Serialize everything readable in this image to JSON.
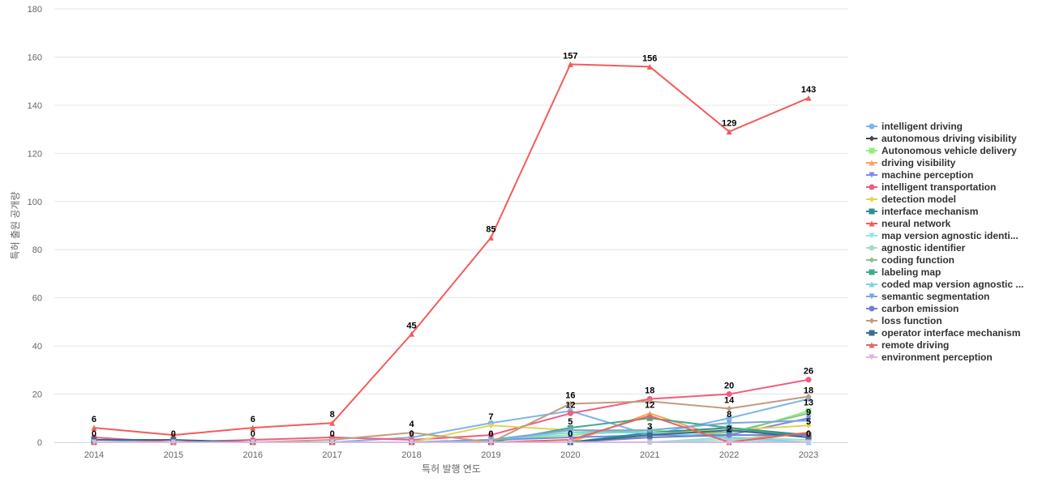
{
  "chart_data": {
    "type": "line",
    "x_title": "특허 발행 연도",
    "y_title": "특허 출원 공개량",
    "categories": [
      "2014",
      "2015",
      "2016",
      "2017",
      "2018",
      "2019",
      "2020",
      "2021",
      "2022",
      "2023"
    ],
    "y_ticks": [
      "0",
      "20",
      "40",
      "60",
      "80",
      "100",
      "120",
      "140",
      "160",
      "180"
    ],
    "ylim": [
      0,
      180
    ],
    "grid": true,
    "legend_position": "right",
    "series": [
      {
        "name": "intelligent driving",
        "color": "#7cb5ec",
        "marker": "circle",
        "values": [
          1,
          0,
          0,
          0,
          2,
          8,
          13,
          3,
          10,
          18
        ]
      },
      {
        "name": "autonomous driving visibility",
        "color": "#434348",
        "marker": "diamond",
        "values": [
          0,
          0,
          0,
          0,
          0,
          0,
          0,
          3,
          5,
          3
        ]
      },
      {
        "name": "Autonomous vehicle delivery",
        "color": "#90ed7d",
        "marker": "square",
        "values": [
          0,
          0,
          0,
          0,
          0,
          1,
          3,
          5,
          3,
          13
        ]
      },
      {
        "name": "driving visibility",
        "color": "#f7a35c",
        "marker": "triangle",
        "values": [
          0,
          0,
          0,
          0,
          0,
          0,
          0,
          12,
          1,
          4
        ]
      },
      {
        "name": "machine perception",
        "color": "#8085e9",
        "marker": "triangle-down",
        "values": [
          0,
          0,
          0,
          0,
          0,
          1,
          2,
          3,
          3,
          10
        ]
      },
      {
        "name": "intelligent transportation",
        "color": "#f15c80",
        "marker": "circle",
        "values": [
          2,
          0,
          1,
          2,
          1,
          3,
          12,
          18,
          20,
          26
        ]
      },
      {
        "name": "detection model",
        "color": "#e4d354",
        "marker": "diamond",
        "values": [
          0,
          0,
          0,
          0,
          0,
          7,
          5,
          4,
          5,
          7
        ]
      },
      {
        "name": "interface mechanism",
        "color": "#2b908f",
        "marker": "square",
        "values": [
          0,
          0,
          0,
          0,
          0,
          0,
          0,
          4,
          6,
          3
        ]
      },
      {
        "name": "neural network",
        "color": "#f45b5b",
        "marker": "triangle",
        "values": [
          6,
          3,
          6,
          8,
          45,
          85,
          157,
          156,
          129,
          143
        ]
      },
      {
        "name": "map version agnostic identi...",
        "color": "#91e8e1",
        "marker": "triangle-down",
        "values": [
          0,
          0,
          0,
          0,
          0,
          0,
          0,
          0,
          1,
          0
        ]
      },
      {
        "name": "agnostic identifier",
        "color": "#a6dcc7",
        "marker": "circle",
        "values": [
          0,
          0,
          0,
          0,
          0,
          0,
          0,
          0,
          2,
          1
        ]
      },
      {
        "name": "coding function",
        "color": "#8bc28b",
        "marker": "diamond",
        "values": [
          0,
          0,
          0,
          0,
          0,
          1,
          5,
          4,
          4,
          12
        ]
      },
      {
        "name": "labeling map",
        "color": "#45a88d",
        "marker": "square",
        "values": [
          0,
          0,
          0,
          0,
          0,
          0,
          6,
          10,
          6,
          2
        ]
      },
      {
        "name": "coded map version agnostic ...",
        "color": "#7dd3e8",
        "marker": "triangle",
        "values": [
          0,
          0,
          0,
          0,
          0,
          1,
          4,
          4,
          2,
          0
        ]
      },
      {
        "name": "semantic segmentation",
        "color": "#79a7d9",
        "marker": "triangle-down",
        "values": [
          0,
          0,
          0,
          0,
          0,
          1,
          5,
          5,
          8,
          9
        ]
      },
      {
        "name": "carbon emission",
        "color": "#6f7fd1",
        "marker": "circle",
        "values": [
          0,
          0,
          0,
          0,
          0,
          0,
          0,
          2,
          3,
          3
        ]
      },
      {
        "name": "loss function",
        "color": "#c49c7e",
        "marker": "diamond",
        "values": [
          0,
          0,
          0,
          1,
          4,
          0,
          16,
          17,
          14,
          19
        ]
      },
      {
        "name": "operator interface mechanism",
        "color": "#3d6e8a",
        "marker": "square",
        "values": [
          1,
          1,
          0,
          0,
          0,
          0,
          0,
          3,
          5,
          2
        ]
      },
      {
        "name": "remote driving",
        "color": "#e06666",
        "marker": "triangle",
        "values": [
          0,
          0,
          0,
          0,
          0,
          0,
          1,
          11,
          0,
          4
        ]
      },
      {
        "name": "environment perception",
        "color": "#d9b8e0",
        "marker": "triangle-down",
        "values": [
          0,
          0,
          0,
          0,
          0,
          0,
          0,
          0,
          0,
          0
        ]
      }
    ],
    "data_labels": [
      {
        "x": "2014",
        "text": "6",
        "y": 6
      },
      {
        "x": "2014",
        "text": "0",
        "y": 0
      },
      {
        "x": "2015",
        "text": "0",
        "y": 0
      },
      {
        "x": "2016",
        "text": "6",
        "y": 6
      },
      {
        "x": "2016",
        "text": "0",
        "y": 0
      },
      {
        "x": "2017",
        "text": "8",
        "y": 8
      },
      {
        "x": "2017",
        "text": "0",
        "y": 0
      },
      {
        "x": "2018",
        "text": "45",
        "y": 45
      },
      {
        "x": "2018",
        "text": "4",
        "y": 4
      },
      {
        "x": "2018",
        "text": "0",
        "y": 0
      },
      {
        "x": "2019",
        "text": "85",
        "y": 85
      },
      {
        "x": "2019",
        "text": "7",
        "y": 7
      },
      {
        "x": "2019",
        "text": "0",
        "y": 0
      },
      {
        "x": "2020",
        "text": "157",
        "y": 157
      },
      {
        "x": "2020",
        "text": "16",
        "y": 16
      },
      {
        "x": "2020",
        "text": "12",
        "y": 12
      },
      {
        "x": "2020",
        "text": "5",
        "y": 5
      },
      {
        "x": "2020",
        "text": "0",
        "y": 0
      },
      {
        "x": "2021",
        "text": "156",
        "y": 156
      },
      {
        "x": "2021",
        "text": "18",
        "y": 18
      },
      {
        "x": "2021",
        "text": "12",
        "y": 12
      },
      {
        "x": "2021",
        "text": "3",
        "y": 3
      },
      {
        "x": "2022",
        "text": "129",
        "y": 129
      },
      {
        "x": "2022",
        "text": "20",
        "y": 20
      },
      {
        "x": "2022",
        "text": "14",
        "y": 14
      },
      {
        "x": "2022",
        "text": "8",
        "y": 8
      },
      {
        "x": "2022",
        "text": "2",
        "y": 2
      },
      {
        "x": "2023",
        "text": "143",
        "y": 143
      },
      {
        "x": "2023",
        "text": "26",
        "y": 26
      },
      {
        "x": "2023",
        "text": "18",
        "y": 18
      },
      {
        "x": "2023",
        "text": "13",
        "y": 13
      },
      {
        "x": "2023",
        "text": "9",
        "y": 9
      },
      {
        "x": "2023",
        "text": "5",
        "y": 5
      },
      {
        "x": "2023",
        "text": "0",
        "y": 0
      }
    ]
  }
}
